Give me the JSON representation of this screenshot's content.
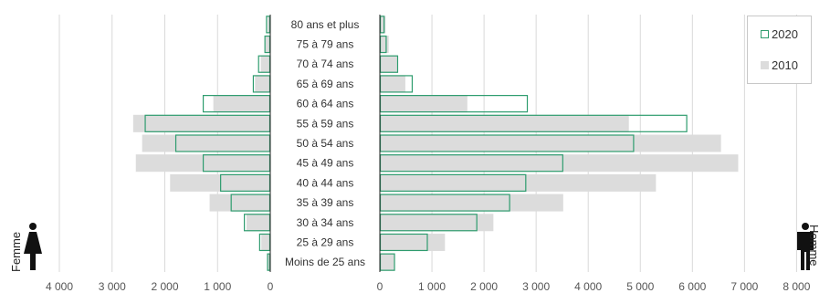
{
  "chart_data": {
    "type": "bar",
    "orientation": "horizontal-population-pyramid",
    "categories": [
      "80 ans et plus",
      "75 à 79 ans",
      "70 à 74 ans",
      "65 à 69 ans",
      "60 à 64 ans",
      "55 à 59 ans",
      "50 à 54 ans",
      "45 à 49 ans",
      "40 à 44 ans",
      "35 à 39 ans",
      "30 à 34 ans",
      "25 à 29 ans",
      "Moins de 25 ans"
    ],
    "left_axis": {
      "label": "Femme",
      "ticks": [
        "4 000",
        "3 000",
        "2 000",
        "1 000",
        "0"
      ],
      "xlim": [
        0,
        4000
      ]
    },
    "right_axis": {
      "label": "Homme",
      "ticks": [
        "0",
        "1 000",
        "2 000",
        "3 000",
        "4 000",
        "5 000",
        "6 000",
        "7 000",
        "8 000"
      ],
      "xlim": [
        0,
        8000
      ]
    },
    "series": [
      {
        "name": "2020",
        "color": "#2e9c6e",
        "style": "outline",
        "femme": [
          80,
          110,
          230,
          330,
          1280,
          2380,
          1800,
          1280,
          950,
          750,
          500,
          210,
          60
        ],
        "homme": [
          90,
          130,
          350,
          630,
          2840,
          5900,
          4880,
          3520,
          2810,
          2500,
          1870,
          920,
          290
        ]
      },
      {
        "name": "2010",
        "color": "#dcdcdc",
        "style": "fill",
        "femme": [
          50,
          90,
          180,
          290,
          1080,
          2600,
          2430,
          2550,
          1900,
          1150,
          450,
          170,
          50
        ],
        "homme": [
          110,
          170,
          330,
          490,
          1680,
          4780,
          6550,
          6880,
          5300,
          3520,
          2180,
          1250,
          270
        ]
      }
    ],
    "legend": {
      "position": "top-right",
      "entries": [
        "2020",
        "2010"
      ]
    },
    "grid": true
  },
  "legend": {
    "item_2020": "2020",
    "item_2010": "2010"
  },
  "labels": {
    "femme": "Femme",
    "homme": "Homme"
  },
  "icons": {
    "femme": "woman-icon",
    "homme": "man-icon"
  }
}
